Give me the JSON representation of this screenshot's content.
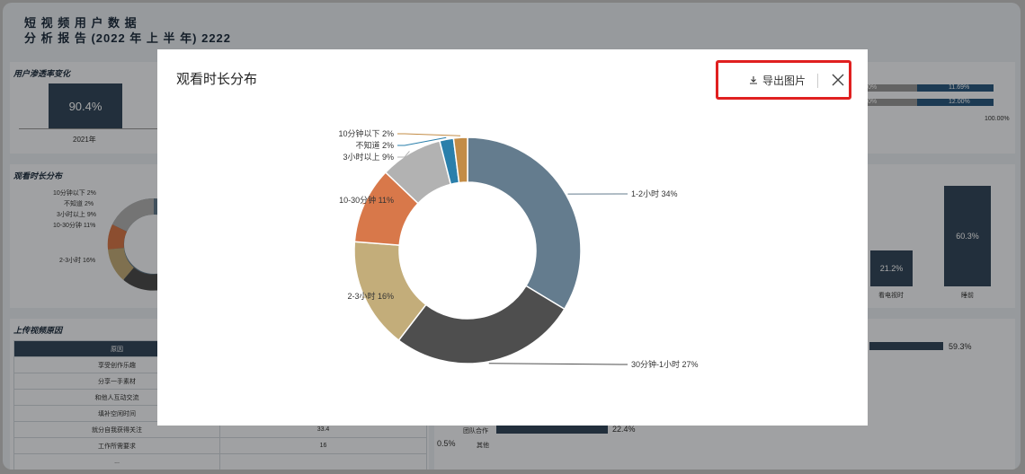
{
  "report": {
    "title_line1": "短 视 频 用 户 数 据",
    "title_line2": "分 析 报 告 (2022 年 上 半 年) 2222"
  },
  "background": {
    "penetration": {
      "title": "用户渗透率变化",
      "value": "90.4%",
      "year": "2021年"
    },
    "right_top": {
      "left_pct_1": "0%",
      "right_pct_1": "11.69%",
      "left_pct_2": "0%",
      "right_pct_2": "12.00%",
      "axis_end": "100.00%"
    },
    "watch_small": {
      "title": "观看时长分布",
      "labels": [
        "10分钟以下 2%",
        "不知道 2%",
        "3小时以上 9%",
        "10-30分钟 11%",
        "2-3小时 16%"
      ]
    },
    "right_bars": {
      "v1": "21.2%",
      "v2": "60.3%",
      "l1": "看电视时",
      "l2": "睡前"
    },
    "upload": {
      "title": "上传视频原因",
      "header": "原因",
      "rows": [
        "享受创作乐趣",
        "分享一手素材",
        "和他人互动交流",
        "填补空闲时间",
        "就分自我获得关注",
        "工作所需要求",
        "..."
      ],
      "value_5": "33.4",
      "value_6": "16"
    },
    "bottom_right": {
      "bar_top_value": "59.3%",
      "team_label": "团队合作",
      "team_value": "22.4%",
      "other_pct": "0.5%",
      "other_label": "其他"
    }
  },
  "modal": {
    "title": "观看时长分布",
    "export_label": "导出图片",
    "icons": {
      "export": "download-icon",
      "close": "close-icon"
    }
  },
  "chart_data": {
    "type": "pie",
    "variant": "donut",
    "slices": [
      {
        "label": "1-2小时",
        "value": 34,
        "text": "1-2小时 34%",
        "color": "#647c8e"
      },
      {
        "label": "30分钟-1小时",
        "value": 27,
        "text": "30分钟-1小时 27%",
        "color": "#4e4e4e"
      },
      {
        "label": "2-3小时",
        "value": 16,
        "text": "2-3小时 16%",
        "color": "#c3ad7a"
      },
      {
        "label": "10-30分钟",
        "value": 11,
        "text": "10-30分钟 11%",
        "color": "#d8784a"
      },
      {
        "label": "3小时以上",
        "value": 9,
        "text": "3小时以上 9%",
        "color": "#b2b2b2"
      },
      {
        "label": "不知道",
        "value": 2,
        "text": "不知道 2%",
        "color": "#2a7fab"
      },
      {
        "label": "10分钟以下",
        "value": 2,
        "text": "10分钟以下 2%",
        "color": "#c38c46"
      }
    ]
  }
}
